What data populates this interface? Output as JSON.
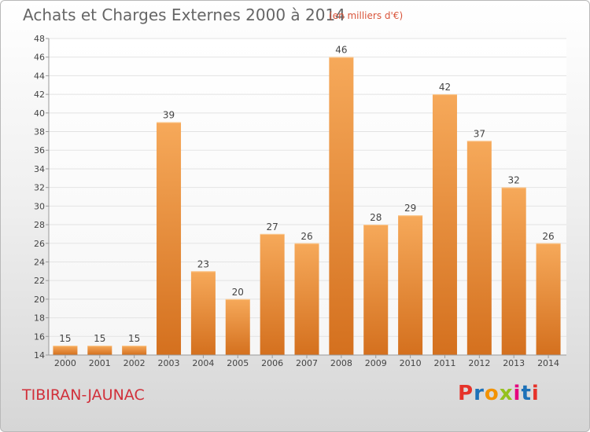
{
  "header": {
    "title": "Achats et Charges Externes 2000 à 2014",
    "subtitle": "(en milliers d'€)"
  },
  "footer": {
    "commune": "TIBIRAN-JAUNAC",
    "logo_text": "Proxiti",
    "logo_colors": [
      "#e6332a",
      "#1d71b8",
      "#f39200",
      "#95c11f",
      "#e6007e",
      "#1d71b8",
      "#e6332a"
    ]
  },
  "colors": {
    "bar_top": "#f6a95a",
    "bar_bottom": "#d4701e",
    "axis": "#999999",
    "grid": "#e3e3e3",
    "text": "#444444"
  },
  "chart_data": {
    "type": "bar",
    "title": "Achats et Charges Externes 2000 à 2014",
    "subtitle": "(en milliers d'€)",
    "xlabel": "",
    "ylabel": "",
    "categories": [
      "2000",
      "2001",
      "2002",
      "2003",
      "2004",
      "2005",
      "2006",
      "2007",
      "2008",
      "2009",
      "2010",
      "2011",
      "2012",
      "2013",
      "2014"
    ],
    "values": [
      15,
      15,
      15,
      39,
      23,
      20,
      27,
      26,
      46,
      28,
      29,
      42,
      37,
      32,
      26
    ],
    "ylim": [
      14,
      48
    ],
    "yticks": [
      14,
      16,
      18,
      20,
      22,
      24,
      26,
      28,
      30,
      32,
      34,
      36,
      38,
      40,
      42,
      44,
      46,
      48
    ],
    "grid": true,
    "data_labels": true
  }
}
